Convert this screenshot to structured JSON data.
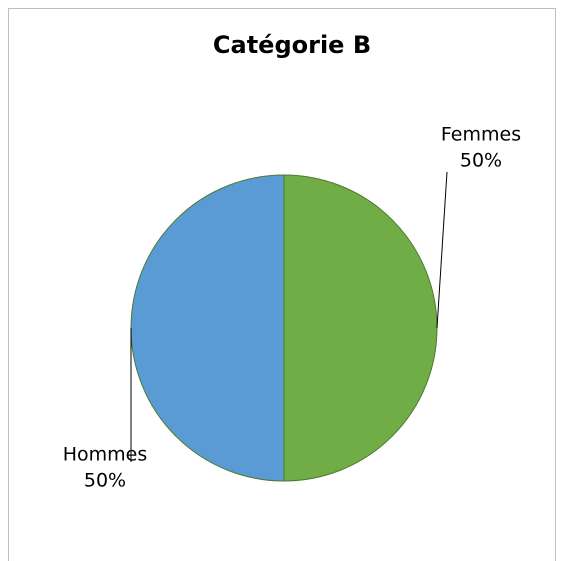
{
  "chart_data": {
    "type": "pie",
    "title": "Catégorie B",
    "categories": [
      "Femmes",
      "Hommes"
    ],
    "values": [
      50,
      50
    ],
    "value_labels": [
      "50%",
      "50%"
    ],
    "colors": [
      "#70ad47",
      "#5b9bd5"
    ]
  }
}
